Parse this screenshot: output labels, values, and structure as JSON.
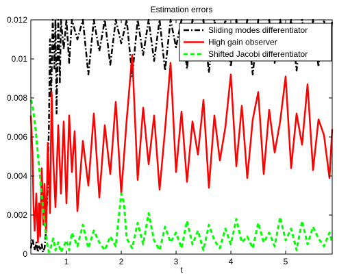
{
  "chart_data": {
    "type": "line",
    "title": "Estimation errors",
    "xlabel": "t",
    "ylabel": "",
    "xlim": [
      0.35,
      5.85
    ],
    "ylim": [
      0,
      0.012
    ],
    "x_ticks": [
      1,
      2,
      3,
      4,
      5
    ],
    "y_ticks": [
      0,
      0.002,
      0.004,
      0.006,
      0.008,
      0.01,
      0.012
    ],
    "x_tick_labels": [
      "1",
      "2",
      "3",
      "4",
      "5"
    ],
    "y_tick_labels": [
      "0",
      "0.002",
      "0.004",
      "0.006",
      "0.008",
      "0.01",
      "0.012"
    ],
    "grid": false,
    "legend_position": "top-right",
    "series": [
      {
        "name": "Sliding modes differentiator",
        "color": "#000000",
        "style": "dash-dot",
        "x": [
          0.35,
          0.38,
          0.42,
          0.45,
          0.48,
          0.5,
          0.53,
          0.55,
          0.57,
          0.6,
          0.62,
          0.65,
          0.68,
          0.7,
          0.72,
          0.75,
          0.78,
          0.8,
          0.82,
          0.85,
          0.88,
          0.9,
          0.95,
          1.0,
          1.05,
          1.1,
          1.2,
          1.3,
          1.4,
          1.5,
          1.6,
          1.7,
          1.8,
          1.9,
          2.0,
          2.1,
          2.2,
          2.3,
          2.4,
          2.5,
          2.6,
          2.7,
          2.8,
          2.9,
          3.0,
          3.1,
          3.2,
          3.3,
          3.4,
          3.5,
          3.6,
          3.7,
          3.8,
          3.9,
          4.0,
          4.1,
          4.2,
          4.3,
          4.4,
          4.5,
          4.6,
          4.7,
          4.8,
          4.9,
          5.0,
          5.1,
          5.2,
          5.3,
          5.4,
          5.5,
          5.6,
          5.7,
          5.8,
          5.85
        ],
        "y": [
          0.0003,
          0.0008,
          0.0002,
          0.0006,
          0.0001,
          0.0004,
          0.0002,
          0.0005,
          0.0001,
          0.0003,
          0.0009,
          0.003,
          0.0065,
          0.011,
          0.008,
          0.012,
          0.0095,
          0.012,
          0.0072,
          0.012,
          0.0088,
          0.012,
          0.0105,
          0.012,
          0.0098,
          0.012,
          0.011,
          0.012,
          0.0092,
          0.012,
          0.0104,
          0.012,
          0.0097,
          0.012,
          0.0108,
          0.012,
          0.0091,
          0.012,
          0.0102,
          0.012,
          0.0099,
          0.012,
          0.0094,
          0.012,
          0.0106,
          0.012,
          0.0095,
          0.012,
          0.0101,
          0.012,
          0.0093,
          0.012,
          0.0104,
          0.012,
          0.0096,
          0.012,
          0.0103,
          0.012,
          0.0092,
          0.012,
          0.0107,
          0.012,
          0.0098,
          0.012,
          0.0105,
          0.012,
          0.0094,
          0.012,
          0.0102,
          0.012,
          0.0096,
          0.012,
          0.0101,
          0.012
        ]
      },
      {
        "name": "High gain observer",
        "color": "#ff0000",
        "style": "solid",
        "x": [
          0.35,
          0.38,
          0.4,
          0.42,
          0.45,
          0.48,
          0.5,
          0.52,
          0.55,
          0.58,
          0.6,
          0.63,
          0.66,
          0.7,
          0.73,
          0.76,
          0.8,
          0.85,
          0.9,
          0.95,
          1.0,
          1.05,
          1.1,
          1.15,
          1.2,
          1.3,
          1.4,
          1.5,
          1.6,
          1.7,
          1.8,
          1.9,
          2.0,
          2.1,
          2.2,
          2.3,
          2.4,
          2.5,
          2.6,
          2.7,
          2.8,
          2.9,
          3.0,
          3.1,
          3.2,
          3.3,
          3.4,
          3.5,
          3.6,
          3.7,
          3.8,
          3.9,
          4.0,
          4.1,
          4.2,
          4.3,
          4.4,
          4.5,
          4.6,
          4.7,
          4.8,
          4.9,
          5.0,
          5.1,
          5.2,
          5.3,
          5.4,
          5.5,
          5.6,
          5.7,
          5.8,
          5.85
        ],
        "y": [
          0.0071,
          0.0052,
          0.0024,
          0.0012,
          0.0031,
          0.0006,
          0.0026,
          0.0009,
          0.0044,
          0.0015,
          0.0036,
          0.0011,
          0.0057,
          0.0021,
          0.0083,
          0.0048,
          0.0024,
          0.0066,
          0.0031,
          0.0068,
          0.0026,
          0.0071,
          0.0042,
          0.0063,
          0.0022,
          0.0058,
          0.0035,
          0.0072,
          0.0029,
          0.0066,
          0.0041,
          0.0078,
          0.0031,
          0.0069,
          0.0102,
          0.0038,
          0.0075,
          0.0046,
          0.0071,
          0.0033,
          0.0064,
          0.0098,
          0.0042,
          0.0073,
          0.0037,
          0.0068,
          0.0051,
          0.0079,
          0.0034,
          0.0071,
          0.0048,
          0.0065,
          0.0092,
          0.0045,
          0.0076,
          0.0039,
          0.0069,
          0.0083,
          0.0041,
          0.0074,
          0.0052,
          0.0068,
          0.0091,
          0.0044,
          0.0072,
          0.0056,
          0.0087,
          0.0043,
          0.0069,
          0.0061,
          0.0039,
          0.0064
        ]
      },
      {
        "name": "Shifted Jacobi differentiator",
        "color": "#00ff00",
        "style": "dashed",
        "x": [
          0.35,
          0.38,
          0.41,
          0.44,
          0.47,
          0.5,
          0.53,
          0.56,
          0.59,
          0.62,
          0.65,
          0.68,
          0.72,
          0.76,
          0.8,
          0.85,
          0.9,
          0.95,
          1.0,
          1.05,
          1.1,
          1.2,
          1.3,
          1.4,
          1.5,
          1.6,
          1.7,
          1.8,
          1.9,
          2.0,
          2.05,
          2.1,
          2.2,
          2.3,
          2.4,
          2.5,
          2.6,
          2.7,
          2.8,
          2.9,
          3.0,
          3.1,
          3.2,
          3.3,
          3.4,
          3.5,
          3.6,
          3.7,
          3.8,
          3.9,
          4.0,
          4.1,
          4.2,
          4.3,
          4.4,
          4.5,
          4.6,
          4.7,
          4.8,
          4.9,
          5.0,
          5.1,
          5.2,
          5.3,
          5.4,
          5.5,
          5.6,
          5.7,
          5.8,
          5.85
        ],
        "y": [
          0.0079,
          0.0076,
          0.007,
          0.0063,
          0.0054,
          0.0045,
          0.0036,
          0.0027,
          0.0019,
          0.0011,
          0.0005,
          0.0001,
          0.0004,
          0.0008,
          0.0002,
          0.0006,
          0.0001,
          0.0004,
          0.0007,
          0.0002,
          0.0011,
          0.0004,
          0.0015,
          0.0003,
          0.0012,
          0.0006,
          0.0002,
          0.0009,
          0.0004,
          0.0031,
          0.0026,
          0.0008,
          0.0003,
          0.0016,
          0.0005,
          0.0021,
          0.0007,
          0.0002,
          0.0014,
          0.0006,
          0.0011,
          0.0003,
          0.0017,
          0.0005,
          0.0012,
          0.0002,
          0.0015,
          0.0007,
          0.0003,
          0.0013,
          0.0005,
          0.0018,
          0.0006,
          0.0009,
          0.0003,
          0.0016,
          0.0006,
          0.0011,
          0.0004,
          0.0019,
          0.0007,
          0.0013,
          0.0002,
          0.0017,
          0.0005,
          0.0014,
          0.0008,
          0.0004,
          0.0011,
          0.0006
        ]
      }
    ]
  }
}
